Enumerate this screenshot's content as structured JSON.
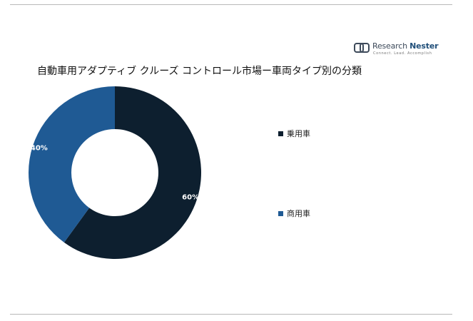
{
  "chart_data": {
    "type": "pie",
    "variant": "donut",
    "title": "自動車用アダプティブ クルーズ コントロール市場ー車両タイプ別の分類",
    "categories": [
      "乗用車",
      "商用車"
    ],
    "values": [
      60,
      40
    ],
    "value_labels": [
      "60%",
      "40%"
    ],
    "colors": [
      "#0d1f2f",
      "#1f5a94"
    ],
    "label_color": "#ffffff",
    "legend_position": "right"
  },
  "logo": {
    "name_part1": "Research ",
    "name_part2": "Nester",
    "tagline": "Connect. Lead. Accomplish"
  }
}
